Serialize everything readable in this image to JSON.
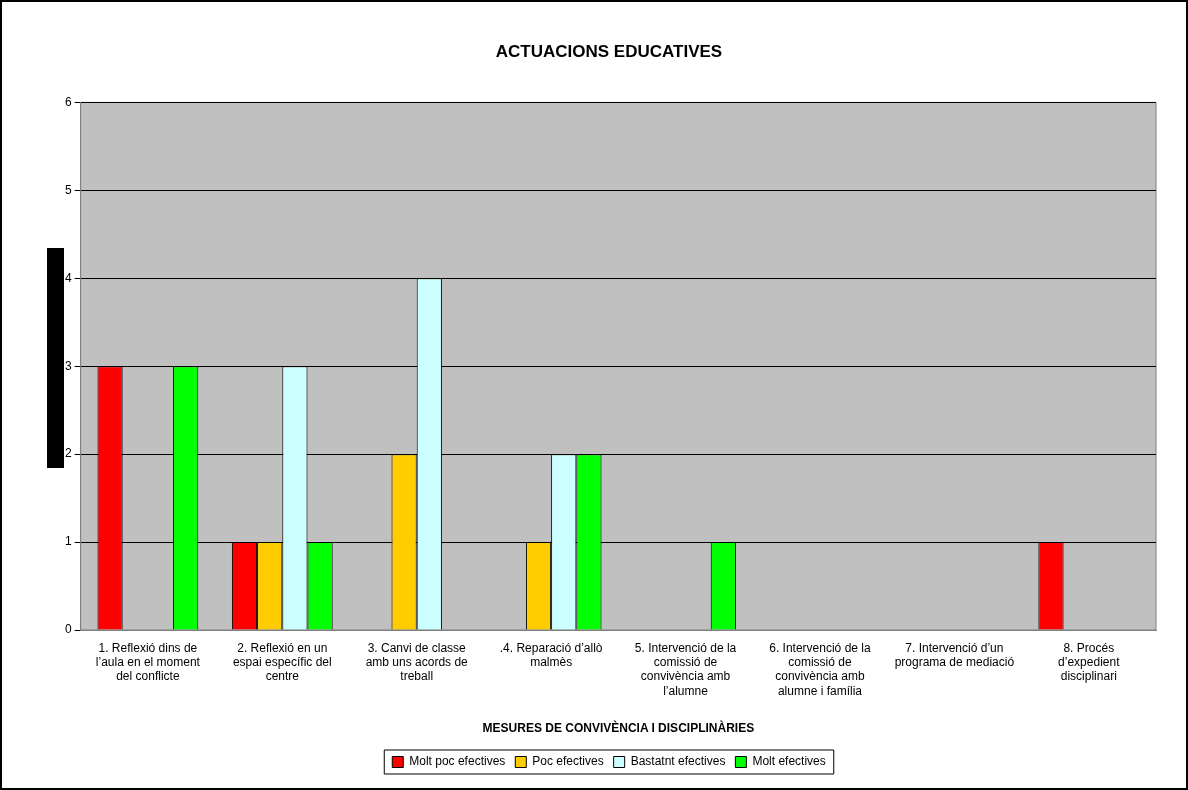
{
  "chart_data": {
    "type": "bar",
    "title": "ACTUACIONS EDUCATIVES",
    "xlabel": "MESURES DE CONVIVÈNCIA I DISCIPLINÀRIES",
    "categories": [
      "1. Reflexió dins de l’aula en el moment del conflicte",
      "2. Reflexió en un espai específic del centre",
      "3. Canvi de classe amb uns acords de treball",
      ".4. Reparació d’allò malmès",
      "5. Intervenció de la comissió de convivència amb l’alumne",
      "6. Intervenció de la comissió de convivència amb alumne i família",
      "7. Intervenció d’un programa de mediació",
      "8. Procés d’expedient disciplinari"
    ],
    "series": [
      {
        "name": "Molt poc efectives",
        "color": "#ff0000",
        "values": [
          3,
          1,
          0,
          0,
          0,
          0,
          0,
          1
        ]
      },
      {
        "name": "Poc efectives",
        "color": "#ffcc00",
        "values": [
          0,
          1,
          2,
          1,
          0,
          0,
          0,
          0
        ]
      },
      {
        "name": "Bastatnt efectives",
        "color": "#ccffff",
        "values": [
          0,
          3,
          4,
          2,
          0,
          0,
          0,
          0
        ]
      },
      {
        "name": "Molt efectives",
        "color": "#00ff00",
        "values": [
          3,
          1,
          0,
          2,
          1,
          0,
          0,
          0
        ]
      }
    ],
    "ylim": [
      0,
      6
    ],
    "yticks": [
      0,
      1,
      2,
      3,
      4,
      5,
      6
    ],
    "grid": "y",
    "legend": "bottom"
  }
}
